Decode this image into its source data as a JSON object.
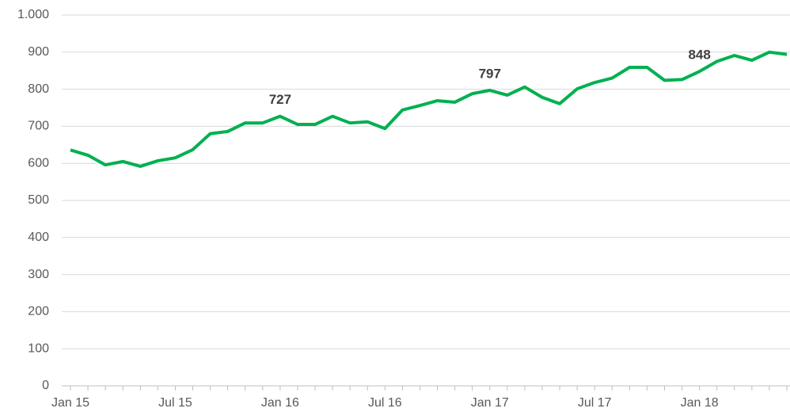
{
  "chart_data": {
    "type": "line",
    "categories": [
      "Jan 15",
      null,
      null,
      null,
      null,
      null,
      "Jul 15",
      null,
      null,
      null,
      null,
      null,
      "Jan 16",
      null,
      null,
      null,
      null,
      null,
      "Jul 16",
      null,
      null,
      null,
      null,
      null,
      "Jan 17",
      null,
      null,
      null,
      null,
      null,
      "Jul 17",
      null,
      null,
      null,
      null,
      null,
      "Jan 18",
      null,
      null,
      null,
      null,
      null
    ],
    "values": [
      636,
      622,
      596,
      605,
      592,
      607,
      615,
      637,
      680,
      686,
      709,
      709,
      727,
      705,
      705,
      727,
      709,
      712,
      694,
      744,
      756,
      769,
      765,
      788,
      797,
      784,
      806,
      778,
      761,
      801,
      818,
      830,
      859,
      859,
      824,
      826,
      848,
      875,
      891,
      878,
      900,
      894
    ],
    "value_labels": [
      null,
      null,
      null,
      null,
      null,
      null,
      null,
      null,
      null,
      null,
      null,
      null,
      "727",
      null,
      null,
      null,
      null,
      null,
      null,
      null,
      null,
      null,
      null,
      null,
      "797",
      null,
      null,
      null,
      null,
      null,
      null,
      null,
      null,
      null,
      null,
      null,
      "848",
      null,
      null,
      null,
      null,
      null
    ],
    "color": "#00b050",
    "ylim": [
      0,
      1000
    ],
    "yticks": [
      0,
      100,
      200,
      300,
      400,
      500,
      600,
      700,
      800,
      900,
      {
        "value": 1000,
        "label": "1.000"
      }
    ],
    "grid": true
  }
}
